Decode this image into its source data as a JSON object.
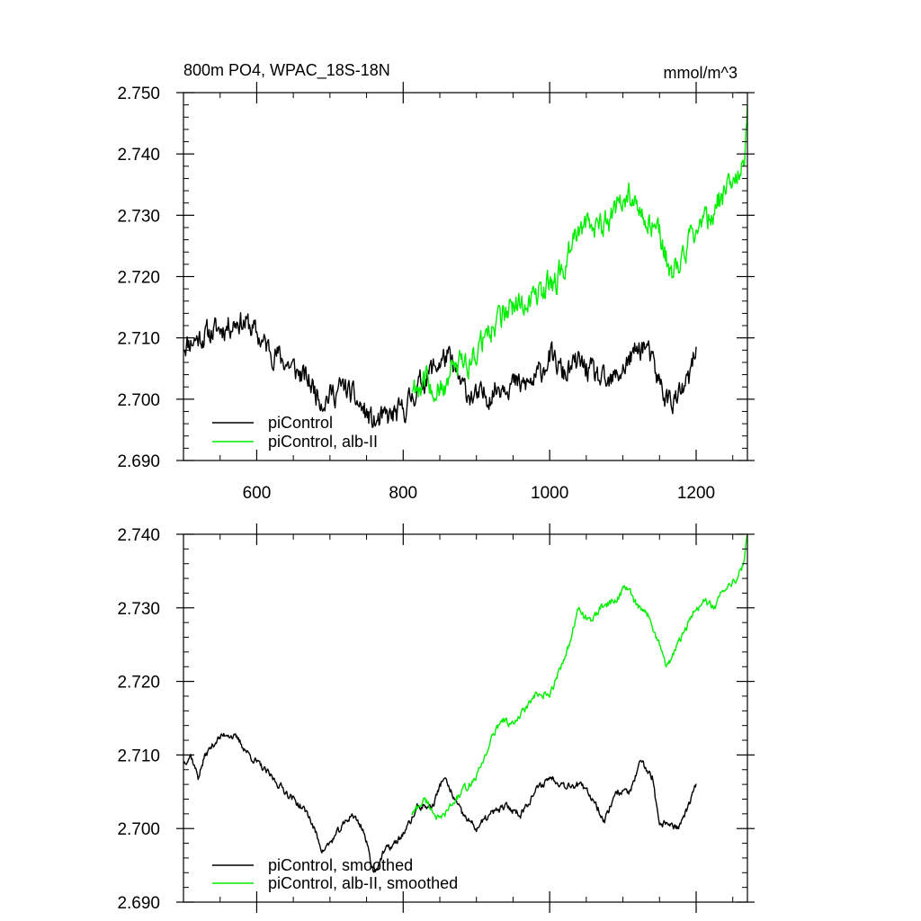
{
  "chart_data": [
    {
      "type": "line",
      "title": "800m PO4, WPAC_18S-18N",
      "units": "mmol/m^3",
      "xlim": [
        500,
        1270
      ],
      "ylim": [
        2.69,
        2.75
      ],
      "x_ticks": [
        600,
        800,
        1000,
        1200
      ],
      "x_tick_labels": [
        "600",
        "800",
        "1000",
        "1200"
      ],
      "y_ticks": [
        2.69,
        2.7,
        2.71,
        2.72,
        2.73,
        2.74,
        2.75
      ],
      "y_tick_labels": [
        "2.690",
        "2.700",
        "2.710",
        "2.720",
        "2.730",
        "2.740",
        "2.750"
      ],
      "legend_position": "bottom-left",
      "series": [
        {
          "name": "piControl",
          "color": "#000000",
          "noise": 0.0028,
          "x": [
            500,
            520,
            540,
            560,
            575,
            590,
            610,
            630,
            650,
            670,
            690,
            705,
            720,
            740,
            760,
            780,
            800,
            820,
            840,
            860,
            880,
            900,
            920,
            940,
            960,
            980,
            1000,
            1020,
            1040,
            1060,
            1080,
            1100,
            1120,
            1130,
            1145,
            1160,
            1175,
            1190,
            1200
          ],
          "values": [
            2.709,
            2.71,
            2.711,
            2.712,
            2.713,
            2.712,
            2.709,
            2.707,
            2.705,
            2.703,
            2.7,
            2.701,
            2.702,
            2.699,
            2.696,
            2.697,
            2.698,
            2.702,
            2.705,
            2.707,
            2.702,
            2.7,
            2.701,
            2.703,
            2.702,
            2.703,
            2.707,
            2.704,
            2.706,
            2.704,
            2.702,
            2.705,
            2.708,
            2.709,
            2.704,
            2.7,
            2.7,
            2.703,
            2.708
          ]
        },
        {
          "name": "piControl, alb-II",
          "color": "#00ee00",
          "noise": 0.003,
          "x": [
            812,
            830,
            850,
            870,
            890,
            910,
            930,
            950,
            970,
            990,
            1010,
            1030,
            1050,
            1070,
            1090,
            1110,
            1130,
            1150,
            1165,
            1180,
            1200,
            1220,
            1240,
            1255,
            1265,
            1270
          ],
          "values": [
            2.702,
            2.703,
            2.701,
            2.705,
            2.706,
            2.71,
            2.713,
            2.715,
            2.716,
            2.718,
            2.719,
            2.725,
            2.729,
            2.728,
            2.731,
            2.733,
            2.73,
            2.727,
            2.72,
            2.723,
            2.728,
            2.73,
            2.734,
            2.735,
            2.738,
            2.746
          ]
        }
      ]
    },
    {
      "type": "line",
      "xlim": [
        500,
        1270
      ],
      "ylim": [
        2.69,
        2.74
      ],
      "x_ticks": [
        600,
        800,
        1000,
        1200
      ],
      "y_ticks": [
        2.69,
        2.7,
        2.71,
        2.72,
        2.73,
        2.74
      ],
      "y_tick_labels": [
        "2.690",
        "2.700",
        "2.710",
        "2.720",
        "2.730",
        "2.740"
      ],
      "legend_position": "bottom-left",
      "series": [
        {
          "name": "piControl, smoothed",
          "color": "#000000",
          "noise": 0.0007,
          "x": [
            500,
            510,
            520,
            530,
            545,
            560,
            575,
            590,
            610,
            630,
            650,
            670,
            690,
            700,
            715,
            730,
            745,
            760,
            775,
            790,
            805,
            820,
            840,
            855,
            870,
            880,
            900,
            920,
            940,
            960,
            980,
            1000,
            1020,
            1040,
            1060,
            1075,
            1090,
            1110,
            1125,
            1140,
            1150,
            1160,
            1175,
            1190,
            1200
          ],
          "values": [
            2.709,
            2.71,
            2.707,
            2.71,
            2.712,
            2.713,
            2.712,
            2.71,
            2.708,
            2.706,
            2.704,
            2.702,
            2.697,
            2.698,
            2.7,
            2.702,
            2.7,
            2.694,
            2.697,
            2.698,
            2.7,
            2.703,
            2.703,
            2.707,
            2.704,
            2.702,
            2.7,
            2.702,
            2.703,
            2.702,
            2.705,
            2.707,
            2.706,
            2.706,
            2.704,
            2.701,
            2.705,
            2.705,
            2.709,
            2.707,
            2.7,
            2.701,
            2.7,
            2.703,
            2.706
          ]
        },
        {
          "name": "piControl, alb-II, smoothed",
          "color": "#00ee00",
          "noise": 0.0007,
          "x": [
            812,
            830,
            850,
            865,
            880,
            900,
            920,
            935,
            950,
            965,
            980,
            1000,
            1015,
            1030,
            1040,
            1055,
            1070,
            1090,
            1105,
            1120,
            1135,
            1150,
            1160,
            1170,
            1180,
            1195,
            1210,
            1225,
            1240,
            1255,
            1265,
            1270
          ],
          "values": [
            2.702,
            2.704,
            2.701,
            2.703,
            2.705,
            2.707,
            2.712,
            2.715,
            2.714,
            2.716,
            2.718,
            2.718,
            2.722,
            2.726,
            2.73,
            2.728,
            2.73,
            2.731,
            2.733,
            2.73,
            2.729,
            2.725,
            2.722,
            2.724,
            2.726,
            2.729,
            2.731,
            2.73,
            2.733,
            2.734,
            2.736,
            2.74
          ]
        }
      ]
    }
  ]
}
